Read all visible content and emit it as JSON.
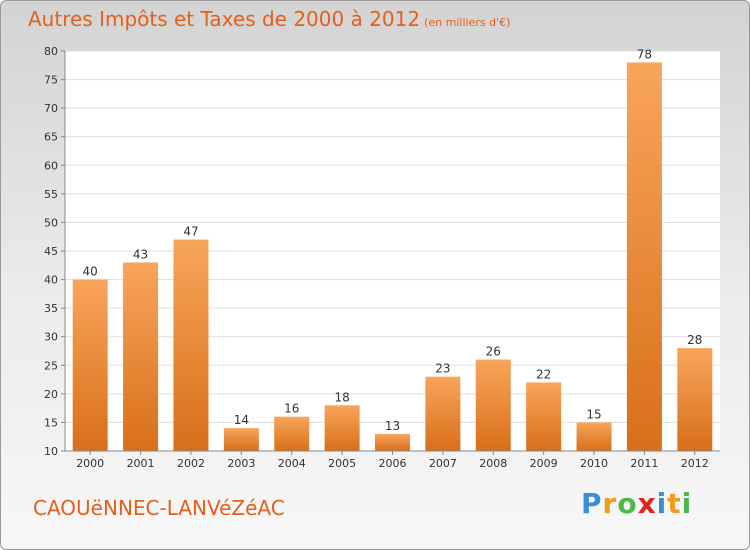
{
  "title": {
    "main": "Autres Impôts et Taxes de 2000 à 2012",
    "unit": "(en milliers d'€)"
  },
  "footer": {
    "location": "CAOUëNNEC-LANVéZéAC"
  },
  "logo": {
    "text": "Proxiti",
    "letters": [
      {
        "ch": "P",
        "color": "#3a8ed6"
      },
      {
        "ch": "r",
        "color": "#f29a1c"
      },
      {
        "ch": "o",
        "color": "#4db848"
      },
      {
        "ch": "x",
        "color": "#e2231a"
      },
      {
        "ch": "i",
        "color": "#3a8ed6"
      },
      {
        "ch": "t",
        "color": "#f29a1c"
      },
      {
        "ch": "i",
        "color": "#4db848"
      }
    ]
  },
  "colors": {
    "title": "#e2611a",
    "bar_light": "#f8a55a",
    "bar_dark": "#d86f1a"
  },
  "chart_data": {
    "type": "bar",
    "title": "Autres Impôts et Taxes de 2000 à 2012",
    "subtitle": "(en milliers d'€)",
    "xlabel": "",
    "ylabel": "",
    "categories": [
      "2000",
      "2001",
      "2002",
      "2003",
      "2004",
      "2005",
      "2006",
      "2007",
      "2008",
      "2009",
      "2010",
      "2011",
      "2012"
    ],
    "values": [
      40,
      43,
      47,
      14,
      16,
      18,
      13,
      23,
      26,
      22,
      15,
      78,
      28
    ],
    "ylim": [
      10,
      80
    ],
    "yticks": [
      10,
      15,
      20,
      25,
      30,
      35,
      40,
      45,
      50,
      55,
      60,
      65,
      70,
      75,
      80
    ],
    "grid": true,
    "legend": "none"
  }
}
